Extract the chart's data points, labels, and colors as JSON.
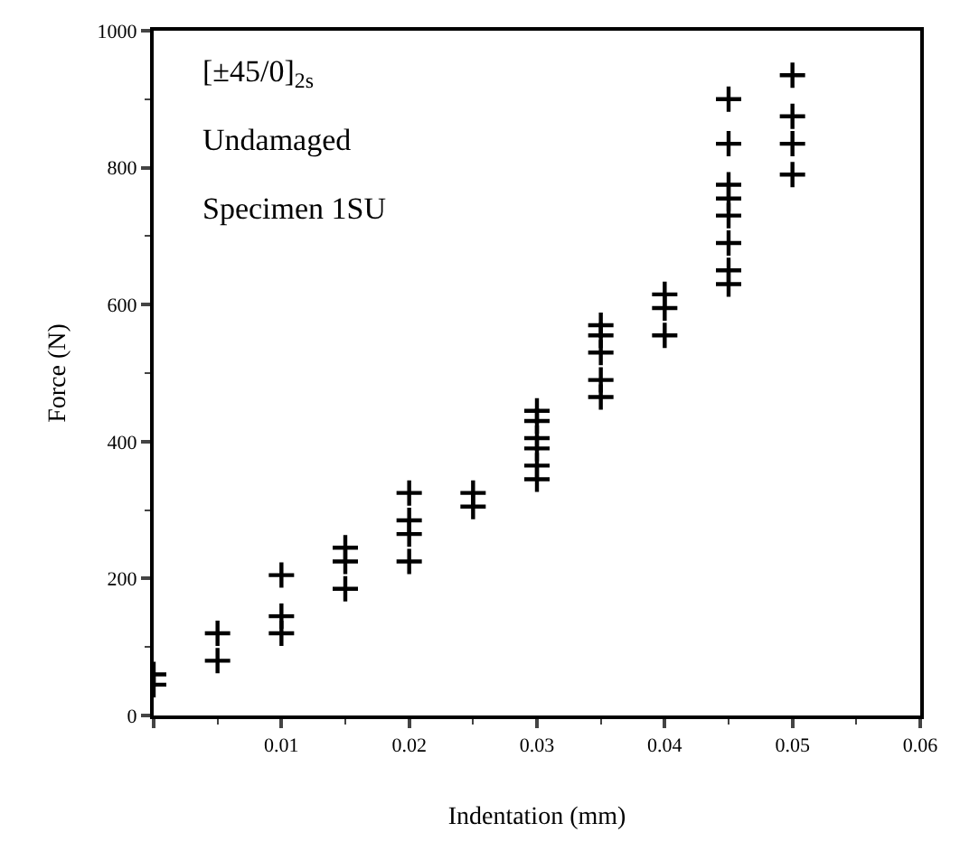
{
  "chart_data": {
    "type": "scatter",
    "xlabel": "Indentation (mm)",
    "ylabel": "Force (N)",
    "annotations": [
      "[±45/0]$_{2s}$",
      "Undamaged",
      "Specimen 1SU"
    ],
    "x": [
      0,
      0,
      0.005,
      0.005,
      0.01,
      0.01,
      0.01,
      0.015,
      0.015,
      0.015,
      0.02,
      0.02,
      0.02,
      0.02,
      0.025,
      0.025,
      0.03,
      0.03,
      0.03,
      0.03,
      0.03,
      0.03,
      0.035,
      0.035,
      0.035,
      0.035,
      0.035,
      0.04,
      0.04,
      0.04,
      0.045,
      0.045,
      0.045,
      0.045,
      0.045,
      0.045,
      0.045,
      0.045,
      0.05,
      0.05,
      0.05,
      0.05
    ],
    "values": [
      60,
      45,
      120,
      80,
      205,
      145,
      120,
      245,
      225,
      185,
      325,
      285,
      265,
      225,
      325,
      305,
      445,
      430,
      405,
      390,
      365,
      345,
      570,
      555,
      530,
      490,
      465,
      615,
      595,
      555,
      900,
      835,
      775,
      755,
      730,
      690,
      650,
      630,
      935,
      875,
      835,
      790
    ],
    "color": "#000000",
    "marker": "cross",
    "xlim": [
      0,
      0.06
    ],
    "xticks": [
      {
        "value": 0,
        "label": null
      },
      0.01,
      0.02,
      0.03,
      0.04,
      0.05,
      0.06
    ],
    "ylim": [
      0,
      1000
    ],
    "yticks": [
      0,
      200,
      400,
      600,
      800,
      1000
    ],
    "grid": false
  }
}
